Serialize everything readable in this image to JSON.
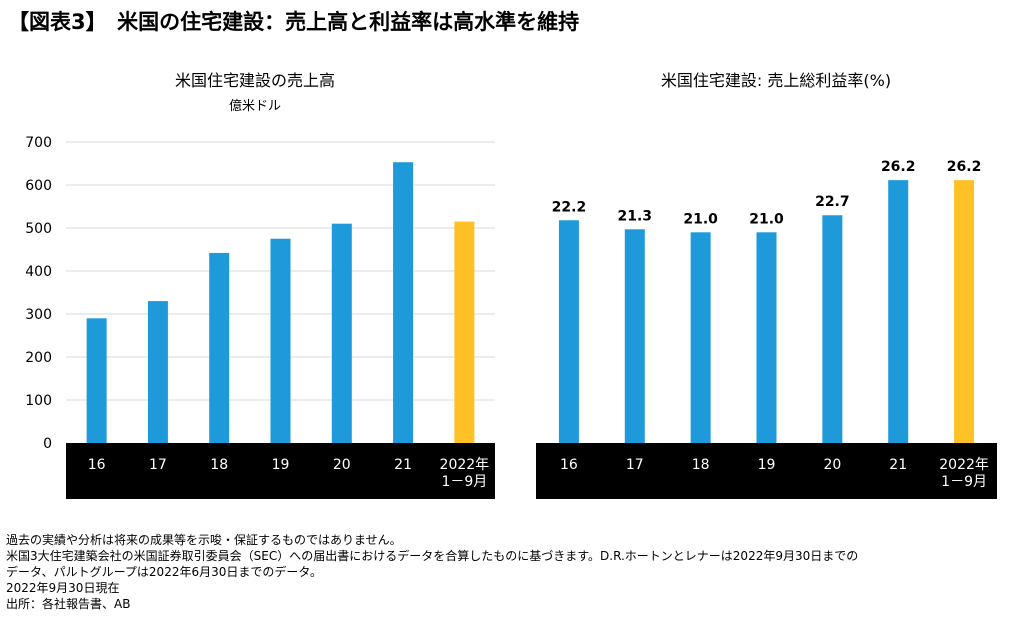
{
  "header": {
    "title": "【図表3】　米国の住宅建設：売上高と利益率は高水準を維持"
  },
  "colors": {
    "bar": "#1E9ADB",
    "highlight": "#FFC125",
    "band": "#000000",
    "band_text": "#ffffff",
    "grid": "#D9D9D9"
  },
  "chart_data": [
    {
      "type": "bar",
      "title": "米国住宅建設の売上高",
      "subtitle": "億米ドル",
      "categories": [
        "16",
        "17",
        "18",
        "19",
        "20",
        "21",
        "2022年\n1－9月"
      ],
      "values": [
        290,
        330,
        442,
        475,
        510,
        653,
        515
      ],
      "ylim": [
        0,
        700
      ],
      "yticks": [
        0,
        100,
        200,
        300,
        400,
        500,
        600,
        700
      ],
      "grid": true,
      "highlight_index": 6,
      "data_labels": false
    },
    {
      "type": "bar",
      "title": "米国住宅建設:  売上総利益率(%)",
      "categories": [
        "16",
        "17",
        "18",
        "19",
        "20",
        "21",
        "2022年\n1－9月"
      ],
      "values": [
        22.2,
        21.3,
        21.0,
        21.0,
        22.7,
        26.2,
        26.2
      ],
      "value_labels": [
        "22.2",
        "21.3",
        "21.0",
        "21.0",
        "22.7",
        "26.2",
        "26.2"
      ],
      "ylim": [
        0,
        30
      ],
      "grid": false,
      "highlight_index": 6,
      "data_labels": true
    }
  ],
  "notes": [
    "過去の実績や分析は将来の成果等を示唆・保証するものではありません。",
    "米国3大住宅建築会社の米国証券取引委員会（SEC）への届出書におけるデータを合算したものに基づきます。D.R.ホートンとレナーは2022年9月30日までの",
    "データ、パルトグループは2022年6月30日までのデータ。",
    "2022年9月30日現在",
    "出所：各社報告書、AB"
  ]
}
